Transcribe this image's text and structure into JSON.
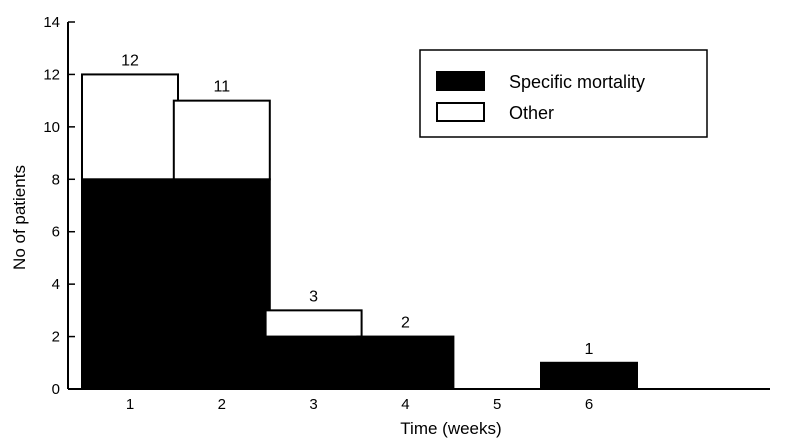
{
  "chart_data": {
    "type": "bar",
    "stacked": true,
    "categories": [
      "1",
      "2",
      "3",
      "4",
      "5",
      "6"
    ],
    "series": [
      {
        "name": "Specific mortality",
        "values": [
          8,
          8,
          2,
          2,
          0,
          1
        ],
        "color": "#000000"
      },
      {
        "name": "Other",
        "values": [
          4,
          3,
          1,
          0,
          0,
          0
        ],
        "color": "#ffffff"
      }
    ],
    "totals": [
      "12",
      "11",
      "3",
      "2",
      "",
      "1"
    ],
    "title": "",
    "xlabel": "Time (weeks)",
    "ylabel": "No of patients",
    "ylim": [
      0,
      14
    ],
    "yticks": [
      "0",
      "2",
      "4",
      "6",
      "8",
      "10",
      "12",
      "14"
    ],
    "grid": false,
    "legend_position": "top-right"
  }
}
